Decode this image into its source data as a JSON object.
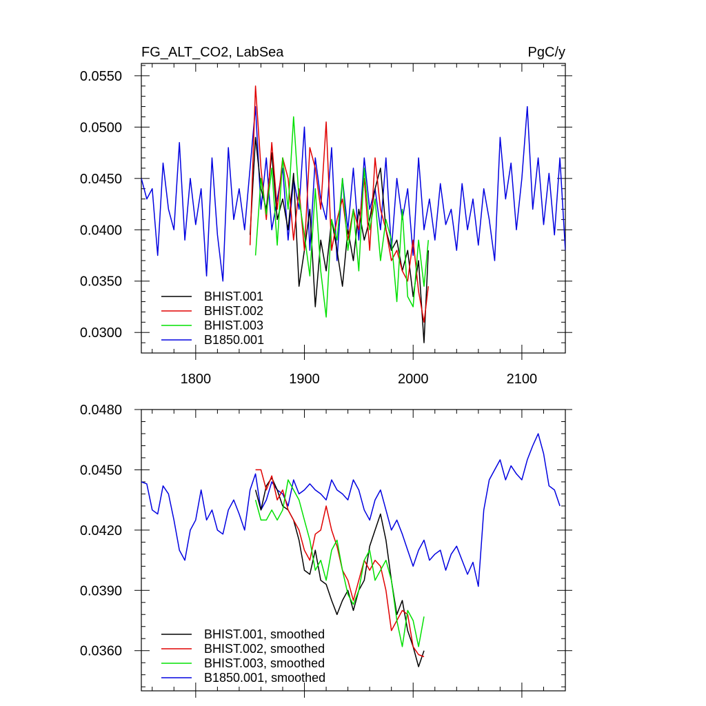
{
  "colors": {
    "BHIST.001": "#000000",
    "BHIST.002": "#e00000",
    "BHIST.003": "#00e000",
    "B1850.001": "#0000e0"
  },
  "chart_data": [
    {
      "type": "line",
      "title": "FG_ALT_CO2, LabSea",
      "units": "PgC/y",
      "xlim": [
        1750,
        2140
      ],
      "ylim": [
        0.028,
        0.0562
      ],
      "xticks": [
        1800,
        1900,
        2000,
        2100
      ],
      "yticks": [
        0.03,
        0.035,
        0.04,
        0.045,
        0.05,
        0.055
      ],
      "ytick_labels": [
        "0.0300",
        "0.0350",
        "0.0400",
        "0.0450",
        "0.0500",
        "0.0550"
      ],
      "xtick_labels": [
        "1800",
        "1900",
        "2000",
        "2100"
      ],
      "legend_position": "bottom-left",
      "grid": false,
      "series": [
        {
          "name": "BHIST.001",
          "x": [
            1850,
            1855,
            1860,
            1865,
            1870,
            1875,
            1880,
            1885,
            1890,
            1895,
            1900,
            1905,
            1910,
            1915,
            1920,
            1925,
            1930,
            1935,
            1940,
            1945,
            1950,
            1955,
            1960,
            1965,
            1970,
            1975,
            1980,
            1985,
            1990,
            1995,
            2000,
            2005,
            2010,
            2014
          ],
          "values": [
            0.0395,
            0.049,
            0.044,
            0.042,
            0.0475,
            0.041,
            0.043,
            0.04,
            0.0455,
            0.0345,
            0.038,
            0.042,
            0.0325,
            0.039,
            0.036,
            0.041,
            0.038,
            0.0345,
            0.04,
            0.037,
            0.042,
            0.039,
            0.041,
            0.044,
            0.046,
            0.04,
            0.038,
            0.039,
            0.036,
            0.038,
            0.0335,
            0.037,
            0.029,
            0.038
          ]
        },
        {
          "name": "BHIST.002",
          "x": [
            1850,
            1855,
            1860,
            1865,
            1870,
            1875,
            1880,
            1885,
            1890,
            1895,
            1900,
            1905,
            1910,
            1915,
            1920,
            1925,
            1930,
            1935,
            1940,
            1945,
            1950,
            1955,
            1960,
            1965,
            1970,
            1975,
            1980,
            1985,
            1990,
            1995,
            2000,
            2005,
            2010,
            2014
          ],
          "values": [
            0.0385,
            0.054,
            0.046,
            0.041,
            0.0485,
            0.042,
            0.047,
            0.045,
            0.039,
            0.044,
            0.038,
            0.048,
            0.046,
            0.042,
            0.0505,
            0.038,
            0.041,
            0.043,
            0.039,
            0.042,
            0.04,
            0.045,
            0.038,
            0.047,
            0.042,
            0.04,
            0.037,
            0.038,
            0.036,
            0.035,
            0.039,
            0.034,
            0.031,
            0.0345
          ]
        },
        {
          "name": "BHIST.003",
          "x": [
            1855,
            1860,
            1865,
            1870,
            1875,
            1880,
            1885,
            1890,
            1895,
            1900,
            1905,
            1910,
            1915,
            1920,
            1925,
            1930,
            1935,
            1940,
            1945,
            1950,
            1955,
            1960,
            1965,
            1970,
            1975,
            1980,
            1985,
            1990,
            1995,
            2000,
            2005,
            2010,
            2014
          ],
          "values": [
            0.0375,
            0.045,
            0.0415,
            0.046,
            0.0385,
            0.047,
            0.042,
            0.051,
            0.043,
            0.0395,
            0.0355,
            0.044,
            0.036,
            0.0315,
            0.041,
            0.039,
            0.045,
            0.038,
            0.042,
            0.036,
            0.046,
            0.04,
            0.043,
            0.037,
            0.041,
            0.039,
            0.033,
            0.042,
            0.0335,
            0.0325,
            0.039,
            0.0345,
            0.039
          ]
        },
        {
          "name": "B1850.001",
          "x": [
            1750,
            1755,
            1760,
            1765,
            1770,
            1775,
            1780,
            1785,
            1790,
            1795,
            1800,
            1805,
            1810,
            1815,
            1820,
            1825,
            1830,
            1835,
            1840,
            1845,
            1850,
            1855,
            1860,
            1865,
            1870,
            1875,
            1880,
            1885,
            1890,
            1895,
            1900,
            1905,
            1910,
            1915,
            1920,
            1925,
            1930,
            1935,
            1940,
            1945,
            1950,
            1955,
            1960,
            1965,
            1970,
            1975,
            1980,
            1985,
            1990,
            1995,
            2000,
            2005,
            2010,
            2015,
            2020,
            2025,
            2030,
            2035,
            2040,
            2045,
            2050,
            2055,
            2060,
            2065,
            2070,
            2075,
            2080,
            2085,
            2090,
            2095,
            2100,
            2105,
            2110,
            2115,
            2120,
            2125,
            2130,
            2135,
            2140
          ],
          "values": [
            0.045,
            0.043,
            0.044,
            0.0375,
            0.0465,
            0.042,
            0.04,
            0.0485,
            0.039,
            0.045,
            0.0405,
            0.044,
            0.0355,
            0.047,
            0.0395,
            0.035,
            0.048,
            0.041,
            0.044,
            0.04,
            0.046,
            0.052,
            0.042,
            0.047,
            0.04,
            0.043,
            0.046,
            0.039,
            0.045,
            0.042,
            0.05,
            0.038,
            0.047,
            0.043,
            0.041,
            0.048,
            0.037,
            0.045,
            0.04,
            0.046,
            0.039,
            0.047,
            0.042,
            0.044,
            0.04,
            0.047,
            0.038,
            0.045,
            0.041,
            0.044,
            0.0375,
            0.047,
            0.04,
            0.043,
            0.039,
            0.0445,
            0.0405,
            0.042,
            0.038,
            0.0445,
            0.04,
            0.043,
            0.0385,
            0.044,
            0.041,
            0.037,
            0.049,
            0.043,
            0.0465,
            0.04,
            0.045,
            0.052,
            0.042,
            0.047,
            0.0405,
            0.0455,
            0.0395,
            0.047,
            0.038
          ]
        }
      ]
    },
    {
      "type": "line",
      "xlim": [
        1750,
        2140
      ],
      "ylim": [
        0.034,
        0.048
      ],
      "xticks": [
        1800,
        1900,
        2000,
        2100
      ],
      "yticks": [
        0.036,
        0.039,
        0.042,
        0.045,
        0.048
      ],
      "ytick_labels": [
        "0.0360",
        "0.0390",
        "0.0420",
        "0.0450",
        "0.0480"
      ],
      "legend_position": "bottom-left",
      "grid": false,
      "series": [
        {
          "name": "BHIST.001, smoothed",
          "x": [
            1855,
            1860,
            1865,
            1870,
            1875,
            1880,
            1885,
            1890,
            1895,
            1900,
            1905,
            1910,
            1915,
            1920,
            1925,
            1930,
            1935,
            1940,
            1945,
            1950,
            1955,
            1960,
            1965,
            1970,
            1975,
            1980,
            1985,
            1990,
            1995,
            2000,
            2005,
            2010
          ],
          "values": [
            0.044,
            0.043,
            0.0442,
            0.0446,
            0.044,
            0.0432,
            0.043,
            0.0425,
            0.0415,
            0.04,
            0.0398,
            0.041,
            0.0395,
            0.0393,
            0.0385,
            0.0378,
            0.0385,
            0.039,
            0.038,
            0.039,
            0.0395,
            0.0412,
            0.042,
            0.0428,
            0.0415,
            0.0395,
            0.0378,
            0.0385,
            0.037,
            0.0362,
            0.0352,
            0.036
          ]
        },
        {
          "name": "BHIST.002, smoothed",
          "x": [
            1855,
            1860,
            1865,
            1870,
            1875,
            1880,
            1885,
            1890,
            1895,
            1900,
            1905,
            1910,
            1915,
            1920,
            1925,
            1930,
            1935,
            1940,
            1945,
            1950,
            1955,
            1960,
            1965,
            1970,
            1975,
            1980,
            1985,
            1990,
            1995,
            2000,
            2005,
            2010
          ],
          "values": [
            0.045,
            0.045,
            0.044,
            0.0447,
            0.0435,
            0.044,
            0.043,
            0.0425,
            0.042,
            0.041,
            0.0405,
            0.0418,
            0.042,
            0.0432,
            0.042,
            0.0412,
            0.04,
            0.0395,
            0.0385,
            0.0395,
            0.0405,
            0.04,
            0.0405,
            0.0402,
            0.039,
            0.037,
            0.0375,
            0.038,
            0.0378,
            0.0362,
            0.0358,
            0.0357
          ]
        },
        {
          "name": "BHIST.003, smoothed",
          "x": [
            1855,
            1860,
            1865,
            1870,
            1875,
            1880,
            1885,
            1890,
            1895,
            1900,
            1905,
            1910,
            1915,
            1920,
            1925,
            1930,
            1935,
            1940,
            1945,
            1950,
            1955,
            1960,
            1965,
            1970,
            1975,
            1980,
            1985,
            1990,
            1995,
            2000,
            2005,
            2010
          ],
          "values": [
            0.0435,
            0.0425,
            0.0425,
            0.043,
            0.0425,
            0.043,
            0.0445,
            0.044,
            0.0435,
            0.0425,
            0.0415,
            0.04,
            0.0405,
            0.0395,
            0.041,
            0.0415,
            0.04,
            0.0388,
            0.0383,
            0.039,
            0.0405,
            0.041,
            0.0395,
            0.04,
            0.0405,
            0.0395,
            0.0375,
            0.0362,
            0.038,
            0.0375,
            0.0362,
            0.0377
          ]
        },
        {
          "name": "B1850.001, smoothed",
          "x": [
            1750,
            1755,
            1760,
            1765,
            1770,
            1775,
            1780,
            1785,
            1790,
            1795,
            1800,
            1805,
            1810,
            1815,
            1820,
            1825,
            1830,
            1835,
            1840,
            1845,
            1850,
            1855,
            1860,
            1865,
            1870,
            1875,
            1880,
            1885,
            1890,
            1895,
            1900,
            1905,
            1910,
            1915,
            1920,
            1925,
            1930,
            1935,
            1940,
            1945,
            1950,
            1955,
            1960,
            1965,
            1970,
            1975,
            1980,
            1985,
            1990,
            1995,
            2000,
            2005,
            2010,
            2015,
            2020,
            2025,
            2030,
            2035,
            2040,
            2045,
            2050,
            2055,
            2060,
            2065,
            2070,
            2075,
            2080,
            2085,
            2090,
            2095,
            2100,
            2105,
            2110,
            2115,
            2120,
            2125,
            2130,
            2135
          ],
          "values": [
            0.0444,
            0.0443,
            0.043,
            0.0428,
            0.0442,
            0.0438,
            0.0425,
            0.041,
            0.0405,
            0.042,
            0.0425,
            0.044,
            0.0425,
            0.043,
            0.042,
            0.0418,
            0.043,
            0.0435,
            0.0428,
            0.042,
            0.044,
            0.0448,
            0.043,
            0.0435,
            0.0444,
            0.044,
            0.0438,
            0.0432,
            0.0445,
            0.0438,
            0.044,
            0.0443,
            0.044,
            0.0438,
            0.0435,
            0.0445,
            0.044,
            0.0438,
            0.0435,
            0.0445,
            0.044,
            0.043,
            0.0425,
            0.0435,
            0.044,
            0.043,
            0.042,
            0.0425,
            0.0418,
            0.041,
            0.0402,
            0.041,
            0.0415,
            0.0405,
            0.0408,
            0.041,
            0.04,
            0.0408,
            0.0412,
            0.0405,
            0.0398,
            0.0404,
            0.0392,
            0.043,
            0.0445,
            0.045,
            0.0455,
            0.0445,
            0.0452,
            0.0448,
            0.0445,
            0.0455,
            0.0462,
            0.0468,
            0.0458,
            0.0442,
            0.044,
            0.0432
          ]
        }
      ]
    }
  ]
}
